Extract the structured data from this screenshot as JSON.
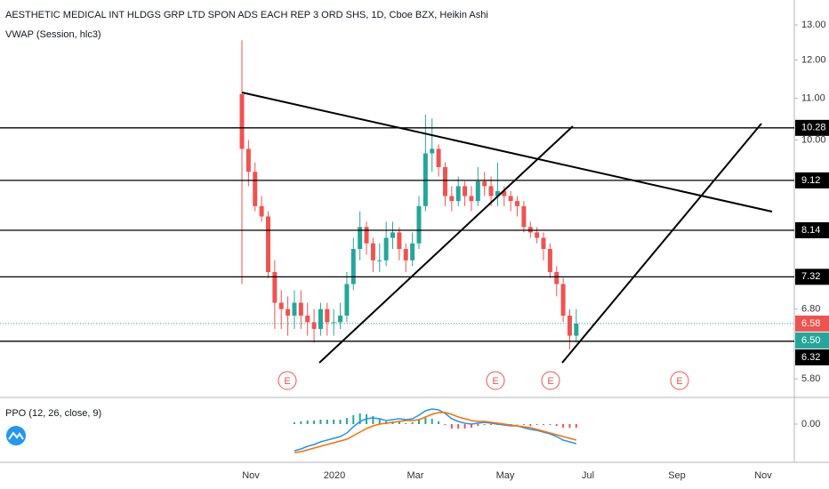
{
  "chart_data": [
    {
      "type": "candlestick",
      "title": "AESTHETIC MEDICAL INT HLDGS GRP LTD SPON ADS EACH REP 3 ORD SHS, 1D, Cboe BZX, Heikin Ashi",
      "subtitle": "VWAP (Session, hlc3)",
      "open": [
        11.1,
        9.8,
        9.3,
        8.6,
        8.4,
        7.4,
        6.9,
        6.8,
        6.7,
        6.9,
        6.7,
        6.6,
        6.5,
        6.8,
        6.6,
        6.6,
        6.7,
        7.2,
        7.8,
        8.2,
        7.9,
        7.6,
        7.6,
        8.0,
        8.1,
        7.8,
        7.6,
        7.9,
        8.6,
        9.7,
        9.8,
        9.4,
        8.8,
        8.7,
        9.0,
        8.8,
        8.7,
        9.1,
        9.0,
        8.8,
        8.9,
        8.8,
        8.7,
        8.6,
        8.2,
        8.1,
        8.0,
        7.8,
        7.4,
        7.2,
        6.7,
        6.4
      ],
      "high": [
        12.55,
        10.0,
        9.5,
        8.8,
        8.5,
        7.6,
        7.1,
        7.0,
        7.1,
        7.1,
        6.9,
        6.8,
        6.9,
        6.9,
        6.8,
        6.9,
        7.4,
        8.0,
        8.5,
        8.3,
        8.0,
        7.9,
        8.3,
        8.3,
        8.2,
        7.9,
        8.1,
        8.8,
        10.6,
        10.5,
        9.9,
        9.5,
        9.0,
        9.2,
        9.1,
        9.0,
        9.4,
        9.3,
        9.2,
        9.5,
        9.0,
        8.9,
        8.8,
        8.7,
        8.3,
        8.2,
        8.1,
        7.9,
        7.5,
        7.3,
        6.8,
        6.8
      ],
      "low": [
        7.2,
        9.0,
        8.5,
        8.3,
        7.3,
        6.5,
        6.5,
        6.4,
        6.5,
        6.5,
        6.4,
        6.3,
        6.4,
        6.4,
        6.4,
        6.5,
        6.6,
        7.1,
        7.6,
        7.7,
        7.4,
        7.4,
        7.5,
        7.8,
        7.6,
        7.4,
        7.5,
        7.8,
        8.5,
        9.3,
        9.2,
        8.6,
        8.5,
        8.6,
        8.6,
        8.5,
        8.6,
        8.8,
        8.6,
        8.6,
        8.6,
        8.5,
        8.4,
        8.1,
        8.0,
        7.9,
        7.6,
        7.3,
        7.0,
        6.6,
        6.2,
        6.3
      ],
      "close": [
        9.8,
        9.3,
        8.6,
        8.4,
        7.4,
        6.9,
        6.8,
        6.7,
        6.9,
        6.7,
        6.6,
        6.5,
        6.8,
        6.6,
        6.6,
        6.7,
        7.2,
        7.8,
        8.2,
        7.9,
        7.6,
        7.6,
        8.0,
        8.1,
        7.8,
        7.6,
        7.9,
        8.6,
        9.7,
        9.8,
        9.4,
        8.8,
        8.7,
        9.0,
        8.8,
        8.7,
        9.1,
        9.0,
        8.8,
        8.9,
        8.8,
        8.7,
        8.6,
        8.2,
        8.1,
        8.0,
        7.8,
        7.4,
        7.2,
        6.7,
        6.4,
        6.58
      ],
      "up_color": "#26a69a",
      "down_color": "#ef5350",
      "log_scale": true,
      "ylim": [
        5.56,
        13.76
      ],
      "yticks": [
        {
          "value": 13,
          "label": "13.00"
        },
        {
          "value": 12,
          "label": "12.00"
        },
        {
          "value": 11,
          "label": "11.00"
        },
        {
          "value": 10,
          "label": "10.00"
        },
        {
          "value": 6.8,
          "label": "6.80"
        },
        {
          "value": 5.8,
          "label": "5.80"
        }
      ],
      "levels": [
        10.28,
        9.12,
        8.14,
        7.32,
        6.32
      ],
      "last_price": 6.58,
      "vwap": {
        "value": 6.5,
        "label": "6.50"
      },
      "vwap_color": "#26a69a",
      "earnings": [
        "E",
        "E",
        "E",
        "E"
      ],
      "x_labels": [
        "Nov",
        "2020",
        "Mar",
        "May",
        "Jul",
        "Sep",
        "Nov"
      ]
    },
    {
      "type": "line",
      "title": "PPO (12, 26, close, 9)",
      "ylim": [
        -4,
        2.5
      ],
      "yticks": [
        {
          "value": 0,
          "label": "0.00"
        }
      ],
      "series": [
        {
          "color": "#2196f3",
          "values": [
            null,
            null,
            null,
            null,
            null,
            null,
            null,
            null,
            -3.0,
            -2.8,
            -2.5,
            -2.3,
            -2.0,
            -1.8,
            -1.6,
            -1.4,
            -1.0,
            -0.3,
            0.3,
            0.6,
            0.7,
            0.6,
            0.4,
            0.5,
            0.6,
            0.5,
            0.6,
            1.0,
            1.5,
            1.7,
            1.6,
            1.2,
            0.6,
            0.3,
            0.1,
            0.0,
            0.1,
            0.2,
            0.1,
            0.0,
            -0.1,
            -0.2,
            -0.2,
            -0.4,
            -0.6,
            -0.7,
            -0.9,
            -1.1,
            -1.4,
            -1.8,
            -2.0,
            -2.2
          ]
        },
        {
          "color": "#ff6d00",
          "values": [
            null,
            null,
            null,
            null,
            null,
            null,
            null,
            null,
            -3.2,
            -3.1,
            -2.9,
            -2.7,
            -2.5,
            -2.3,
            -2.1,
            -1.9,
            -1.7,
            -1.3,
            -0.9,
            -0.5,
            -0.2,
            0.0,
            0.1,
            0.2,
            0.3,
            0.4,
            0.4,
            0.5,
            0.8,
            1.1,
            1.3,
            1.3,
            1.1,
            0.8,
            0.6,
            0.4,
            0.3,
            0.3,
            0.2,
            0.1,
            0.0,
            -0.1,
            -0.2,
            -0.3,
            -0.4,
            -0.6,
            -0.8,
            -1.0,
            -1.2,
            -1.4,
            -1.6,
            -1.8
          ]
        }
      ],
      "histogram": [
        null,
        null,
        null,
        null,
        null,
        null,
        null,
        null,
        0.2,
        0.3,
        0.4,
        0.4,
        0.5,
        0.5,
        0.5,
        0.5,
        0.7,
        1.0,
        1.2,
        1.1,
        0.9,
        0.6,
        0.3,
        0.3,
        0.3,
        0.1,
        0.2,
        0.5,
        0.7,
        0.6,
        0.3,
        -0.1,
        -0.5,
        -0.5,
        -0.5,
        -0.4,
        -0.2,
        -0.1,
        -0.1,
        -0.1,
        -0.1,
        -0.1,
        0.0,
        -0.1,
        -0.2,
        -0.1,
        -0.1,
        -0.1,
        -0.2,
        -0.4,
        -0.4,
        -0.4
      ],
      "hist_up_color": "#26a69a",
      "hist_down_color": "#ef5350"
    }
  ]
}
